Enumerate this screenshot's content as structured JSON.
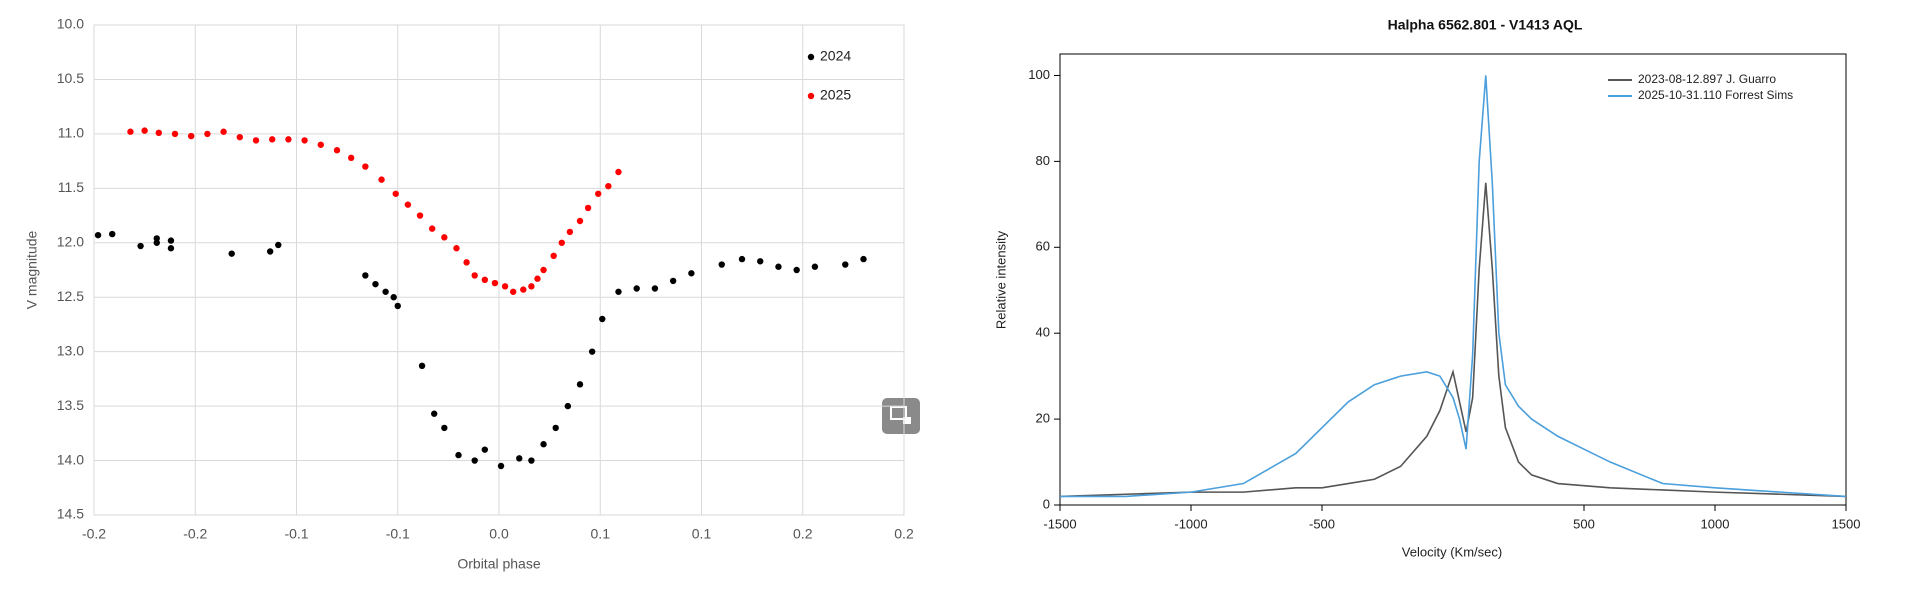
{
  "chart_data": [
    {
      "type": "scatter",
      "xlabel": "Orbital phase",
      "ylabel": "V magnitude",
      "xlim": [
        -0.2,
        0.2
      ],
      "xticks": [
        -0.2,
        {
          "value": -0.15,
          "label": "-0.2"
        },
        -0.1,
        {
          "value": -0.05,
          "label": "-0.1"
        },
        {
          "value": 0,
          "label": "0.0"
        },
        {
          "value": 0.05,
          "label": "0.1"
        },
        0.1,
        {
          "value": 0.15,
          "label": "0.2"
        },
        0.2
      ],
      "ylim": [
        14.5,
        10
      ],
      "yticks": [
        {
          "value": 10,
          "label": "10.0"
        },
        10.5,
        {
          "value": 11,
          "label": "11.0"
        },
        11.5,
        {
          "value": 12,
          "label": "12.0"
        },
        12.5,
        {
          "value": 13,
          "label": "13.0"
        },
        13.5,
        {
          "value": 14,
          "label": "14.0"
        },
        14.5
      ],
      "grid": true,
      "legend": "top-right",
      "series": [
        {
          "name": "2024",
          "color": "#000000",
          "x": [
            -0.198,
            -0.191,
            -0.177,
            -0.169,
            -0.169,
            -0.162,
            -0.162,
            -0.132,
            -0.113,
            -0.109,
            -0.066,
            -0.061,
            -0.056,
            -0.052,
            -0.05,
            -0.038,
            -0.032,
            -0.027,
            -0.02,
            -0.012,
            -0.007,
            0.001,
            0.01,
            0.016,
            0.022,
            0.028,
            0.034,
            0.04,
            0.046,
            0.051,
            0.059,
            0.068,
            0.077,
            0.086,
            0.095,
            0.11,
            0.12,
            0.129,
            0.138,
            0.147,
            0.156,
            0.171,
            0.18
          ],
          "values": [
            11.93,
            11.92,
            12.03,
            11.96,
            12.0,
            11.98,
            12.05,
            12.1,
            12.08,
            12.02,
            12.3,
            12.38,
            12.45,
            12.5,
            12.58,
            13.13,
            13.57,
            13.7,
            13.95,
            14.0,
            13.9,
            14.05,
            13.98,
            14.0,
            13.85,
            13.7,
            13.5,
            13.3,
            13.0,
            12.7,
            12.45,
            12.42,
            12.42,
            12.35,
            12.28,
            12.2,
            12.15,
            12.17,
            12.22,
            12.25,
            12.22,
            12.2,
            12.15
          ]
        },
        {
          "name": "2025",
          "color": "#ff0000",
          "x": [
            -0.182,
            -0.175,
            -0.168,
            -0.16,
            -0.152,
            -0.144,
            -0.136,
            -0.128,
            -0.12,
            -0.112,
            -0.104,
            -0.096,
            -0.088,
            -0.08,
            -0.073,
            -0.066,
            -0.058,
            -0.051,
            -0.045,
            -0.039,
            -0.033,
            -0.027,
            -0.021,
            -0.016,
            -0.012,
            -0.007,
            -0.002,
            0.003,
            0.007,
            0.012,
            0.016,
            0.019,
            0.022,
            0.027,
            0.031,
            0.035,
            0.04,
            0.044,
            0.049,
            0.054,
            0.059
          ],
          "values": [
            10.98,
            10.97,
            10.99,
            11.0,
            11.02,
            11.0,
            10.98,
            11.03,
            11.06,
            11.05,
            11.05,
            11.06,
            11.1,
            11.15,
            11.22,
            11.3,
            11.42,
            11.55,
            11.65,
            11.75,
            11.87,
            11.95,
            12.05,
            12.18,
            12.3,
            12.34,
            12.37,
            12.4,
            12.45,
            12.43,
            12.4,
            12.33,
            12.25,
            12.12,
            12.0,
            11.9,
            11.8,
            11.68,
            11.55,
            11.48,
            11.35
          ]
        }
      ]
    },
    {
      "type": "line",
      "title": "Halpha 6562.801 - V1413 AQL",
      "xlabel": "Velocity (Km/sec)",
      "ylabel": "Relative intensity",
      "xlim": [
        -1500,
        1500
      ],
      "xticks": [
        -1500,
        -1000,
        -500,
        500,
        1000,
        1500
      ],
      "ylim": [
        0,
        105
      ],
      "yticks": [
        0,
        20,
        40,
        60,
        80,
        100
      ],
      "grid": false,
      "legend": "top-right",
      "x": [
        -1500,
        -1250,
        -1000,
        -800,
        -600,
        -500,
        -400,
        -300,
        -200,
        -100,
        -50,
        0,
        25,
        50,
        75,
        100,
        125,
        150,
        175,
        200,
        250,
        300,
        400,
        500,
        600,
        800,
        1000,
        1250,
        1500
      ],
      "series": [
        {
          "name": "2023-08-12.897 J. Guarro",
          "color": "#555555",
          "values": [
            2,
            2.5,
            3,
            3,
            4,
            4,
            5,
            6,
            9,
            16,
            22,
            31,
            24,
            17,
            25,
            55,
            75,
            55,
            30,
            18,
            10,
            7,
            5,
            4.5,
            4,
            3.5,
            3,
            2.5,
            2
          ]
        },
        {
          "name": "2025-10-31.110 Forrest Sims",
          "color": "#4a9fdc",
          "values": [
            2,
            2,
            3,
            5,
            12,
            18,
            24,
            28,
            30,
            31,
            30,
            25,
            20,
            13,
            35,
            80,
            100,
            75,
            40,
            28,
            23,
            20,
            16,
            13,
            10,
            5,
            4,
            3,
            2
          ]
        }
      ]
    }
  ]
}
